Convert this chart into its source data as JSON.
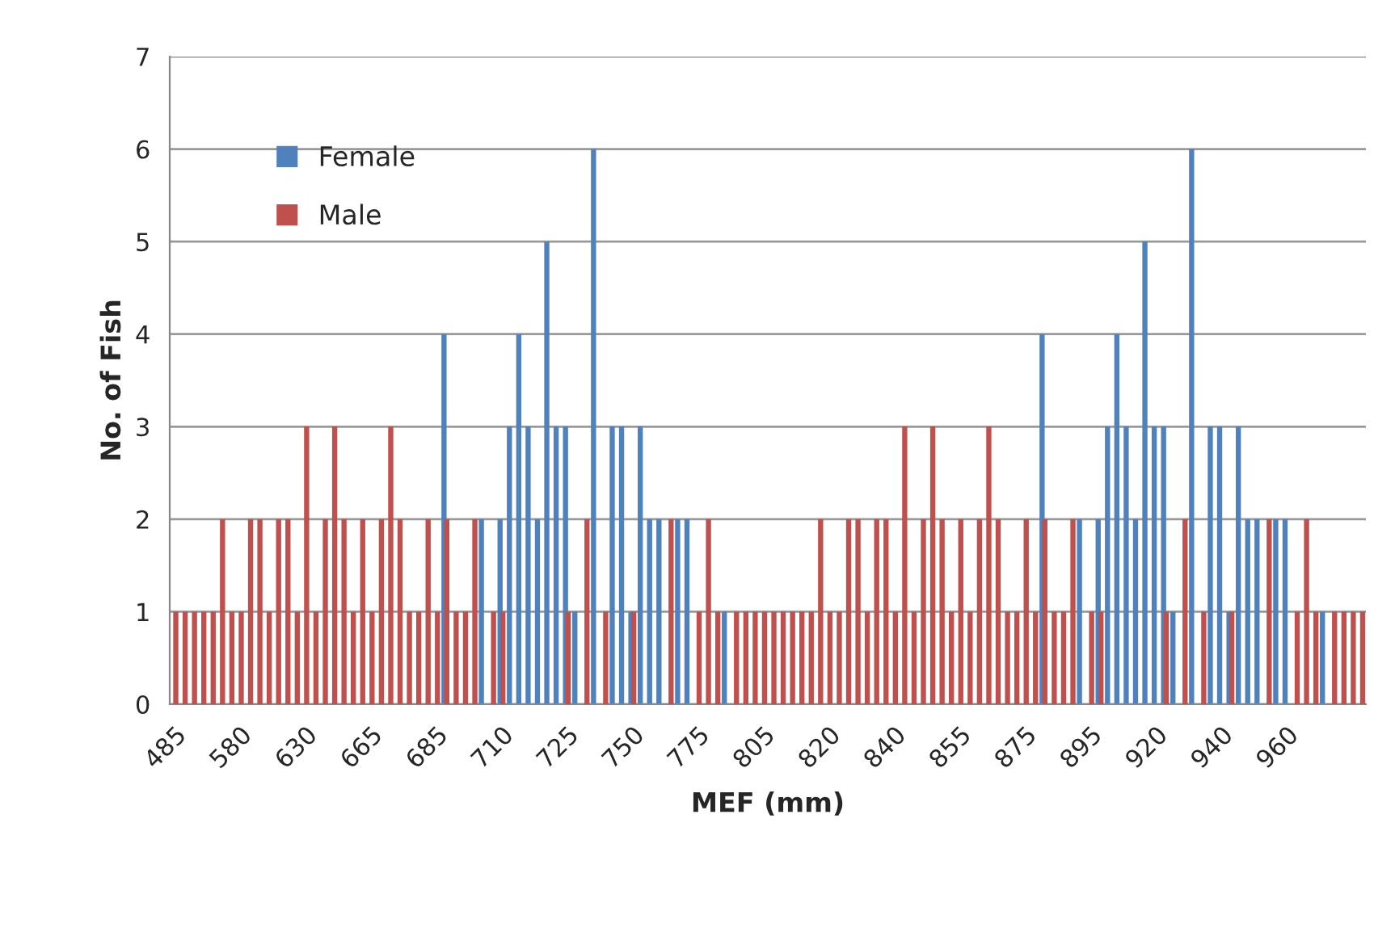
{
  "chart_data": {
    "type": "bar",
    "xlabel": "MEF (mm)",
    "ylabel": "No. of Fish",
    "categories": [
      "485",
      null,
      null,
      null,
      null,
      null,
      null,
      "580",
      null,
      null,
      null,
      null,
      null,
      null,
      "630",
      null,
      null,
      null,
      null,
      null,
      null,
      "665",
      null,
      null,
      null,
      null,
      null,
      null,
      "685",
      null,
      null,
      null,
      null,
      null,
      null,
      "710",
      null,
      null,
      null,
      null,
      null,
      null,
      "725",
      null,
      null,
      null,
      null,
      null,
      null,
      "750",
      null,
      null,
      null,
      null,
      null,
      null,
      "775",
      null,
      null,
      null,
      null,
      null,
      null,
      "805",
      null,
      null,
      null,
      null,
      null,
      null,
      "820",
      null,
      null,
      null,
      null,
      null,
      null,
      "840",
      null,
      null,
      null,
      null,
      null,
      null,
      "855",
      null,
      null,
      null,
      null,
      null,
      null,
      "875",
      null,
      null,
      null,
      null,
      null,
      null,
      "895",
      null,
      null,
      null,
      null,
      null,
      null,
      "920",
      null,
      null,
      null,
      null,
      null,
      null,
      "940",
      null,
      null,
      null,
      null,
      null,
      null,
      "960",
      null,
      null,
      null,
      null,
      null,
      null,
      null,
      null
    ],
    "series": [
      {
        "name": "Female",
        "color": "#4f81bd",
        "values": [
          null,
          null,
          null,
          null,
          null,
          null,
          null,
          null,
          null,
          null,
          null,
          null,
          null,
          null,
          null,
          null,
          null,
          null,
          null,
          null,
          null,
          null,
          null,
          null,
          null,
          null,
          null,
          null,
          null,
          4,
          null,
          null,
          null,
          2,
          null,
          2,
          3,
          4,
          3,
          2,
          5,
          3,
          3,
          1,
          null,
          6,
          null,
          3,
          3,
          1,
          3,
          2,
          2,
          null,
          2,
          2,
          null,
          null,
          null,
          1,
          null,
          null,
          null,
          null,
          null,
          null,
          null,
          null,
          null,
          null,
          null,
          null,
          null,
          null,
          null,
          null,
          null,
          null,
          null,
          null,
          null,
          null,
          null,
          null,
          null,
          null,
          null,
          null,
          null,
          null,
          null,
          null,
          null,
          4,
          null,
          null,
          null,
          2,
          null,
          2,
          3,
          4,
          3,
          2,
          5,
          3,
          3,
          1,
          null,
          6,
          null,
          3,
          3,
          1,
          3,
          2,
          2,
          null,
          2,
          2,
          null,
          null,
          null,
          1,
          null,
          null,
          null,
          null
        ]
      },
      {
        "name": "Male",
        "color": "#c0504d",
        "values": [
          1,
          1,
          1,
          1,
          1,
          2,
          1,
          1,
          2,
          2,
          1,
          2,
          2,
          1,
          3,
          1,
          2,
          3,
          2,
          1,
          2,
          1,
          2,
          3,
          2,
          1,
          1,
          2,
          1,
          2,
          1,
          1,
          2,
          null,
          1,
          1,
          null,
          null,
          null,
          null,
          null,
          null,
          1,
          null,
          2,
          null,
          1,
          null,
          null,
          1,
          null,
          null,
          null,
          2,
          null,
          null,
          1,
          2,
          1,
          null,
          1,
          1,
          1,
          1,
          1,
          1,
          1,
          1,
          1,
          2,
          1,
          1,
          2,
          2,
          1,
          2,
          2,
          1,
          3,
          1,
          2,
          3,
          2,
          1,
          2,
          1,
          2,
          3,
          2,
          1,
          1,
          2,
          1,
          2,
          1,
          1,
          2,
          null,
          1,
          1,
          null,
          null,
          null,
          null,
          null,
          null,
          1,
          null,
          2,
          null,
          1,
          null,
          null,
          1,
          null,
          null,
          null,
          2,
          null,
          null,
          1,
          2,
          1,
          null,
          1,
          1,
          1,
          1
        ]
      }
    ],
    "ylim": [
      0,
      7
    ],
    "yticks": [
      0,
      1,
      2,
      3,
      4,
      5,
      6,
      7
    ],
    "grid": "y",
    "legend": "top left"
  }
}
